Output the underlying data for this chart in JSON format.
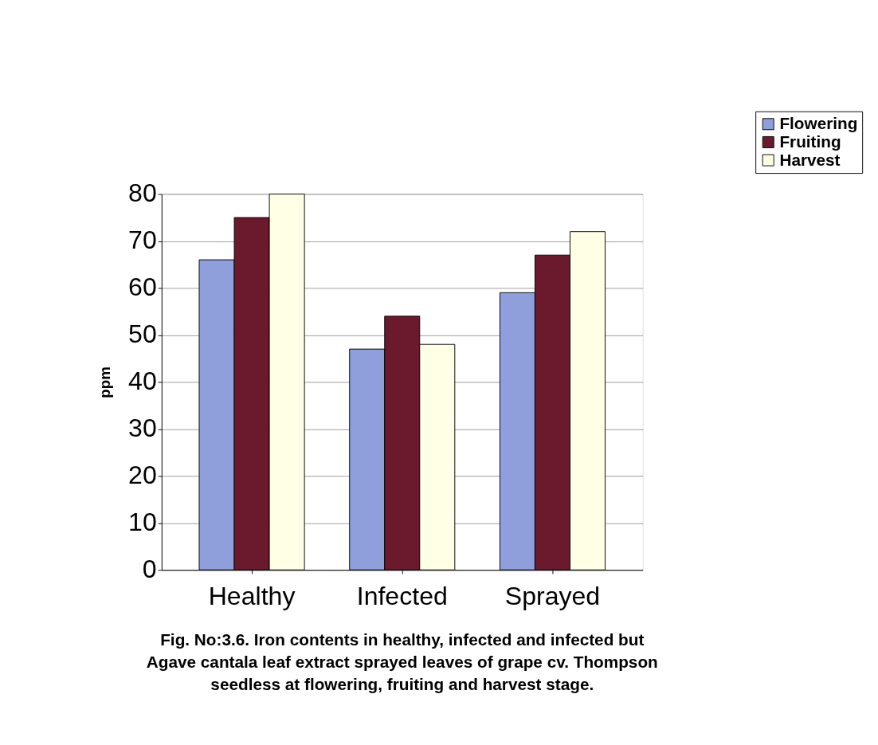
{
  "chart_data": {
    "type": "bar",
    "ylabel": "ppm",
    "categories": [
      "Healthy",
      "Infected",
      "Sprayed"
    ],
    "series": [
      {
        "name": "Flowering",
        "color": "#8e9fdc",
        "values": [
          66,
          47,
          59
        ]
      },
      {
        "name": "Fruiting",
        "color": "#6b1a2e",
        "values": [
          75,
          54,
          67
        ]
      },
      {
        "name": "Harvest",
        "color": "#ffffe6",
        "values": [
          80,
          48,
          72
        ]
      }
    ],
    "ylim": [
      0,
      80
    ],
    "yticks": [
      0,
      10,
      20,
      30,
      40,
      50,
      60,
      70,
      80
    ],
    "grid": "y",
    "legend": "top right",
    "annotations": [
      "Fig. No:3.6. Iron contents in healthy, infected and infected but Agave cantala leaf extract sprayed leaves of grape cv. Thompson seedless at flowering, fruiting and harvest stage."
    ]
  }
}
